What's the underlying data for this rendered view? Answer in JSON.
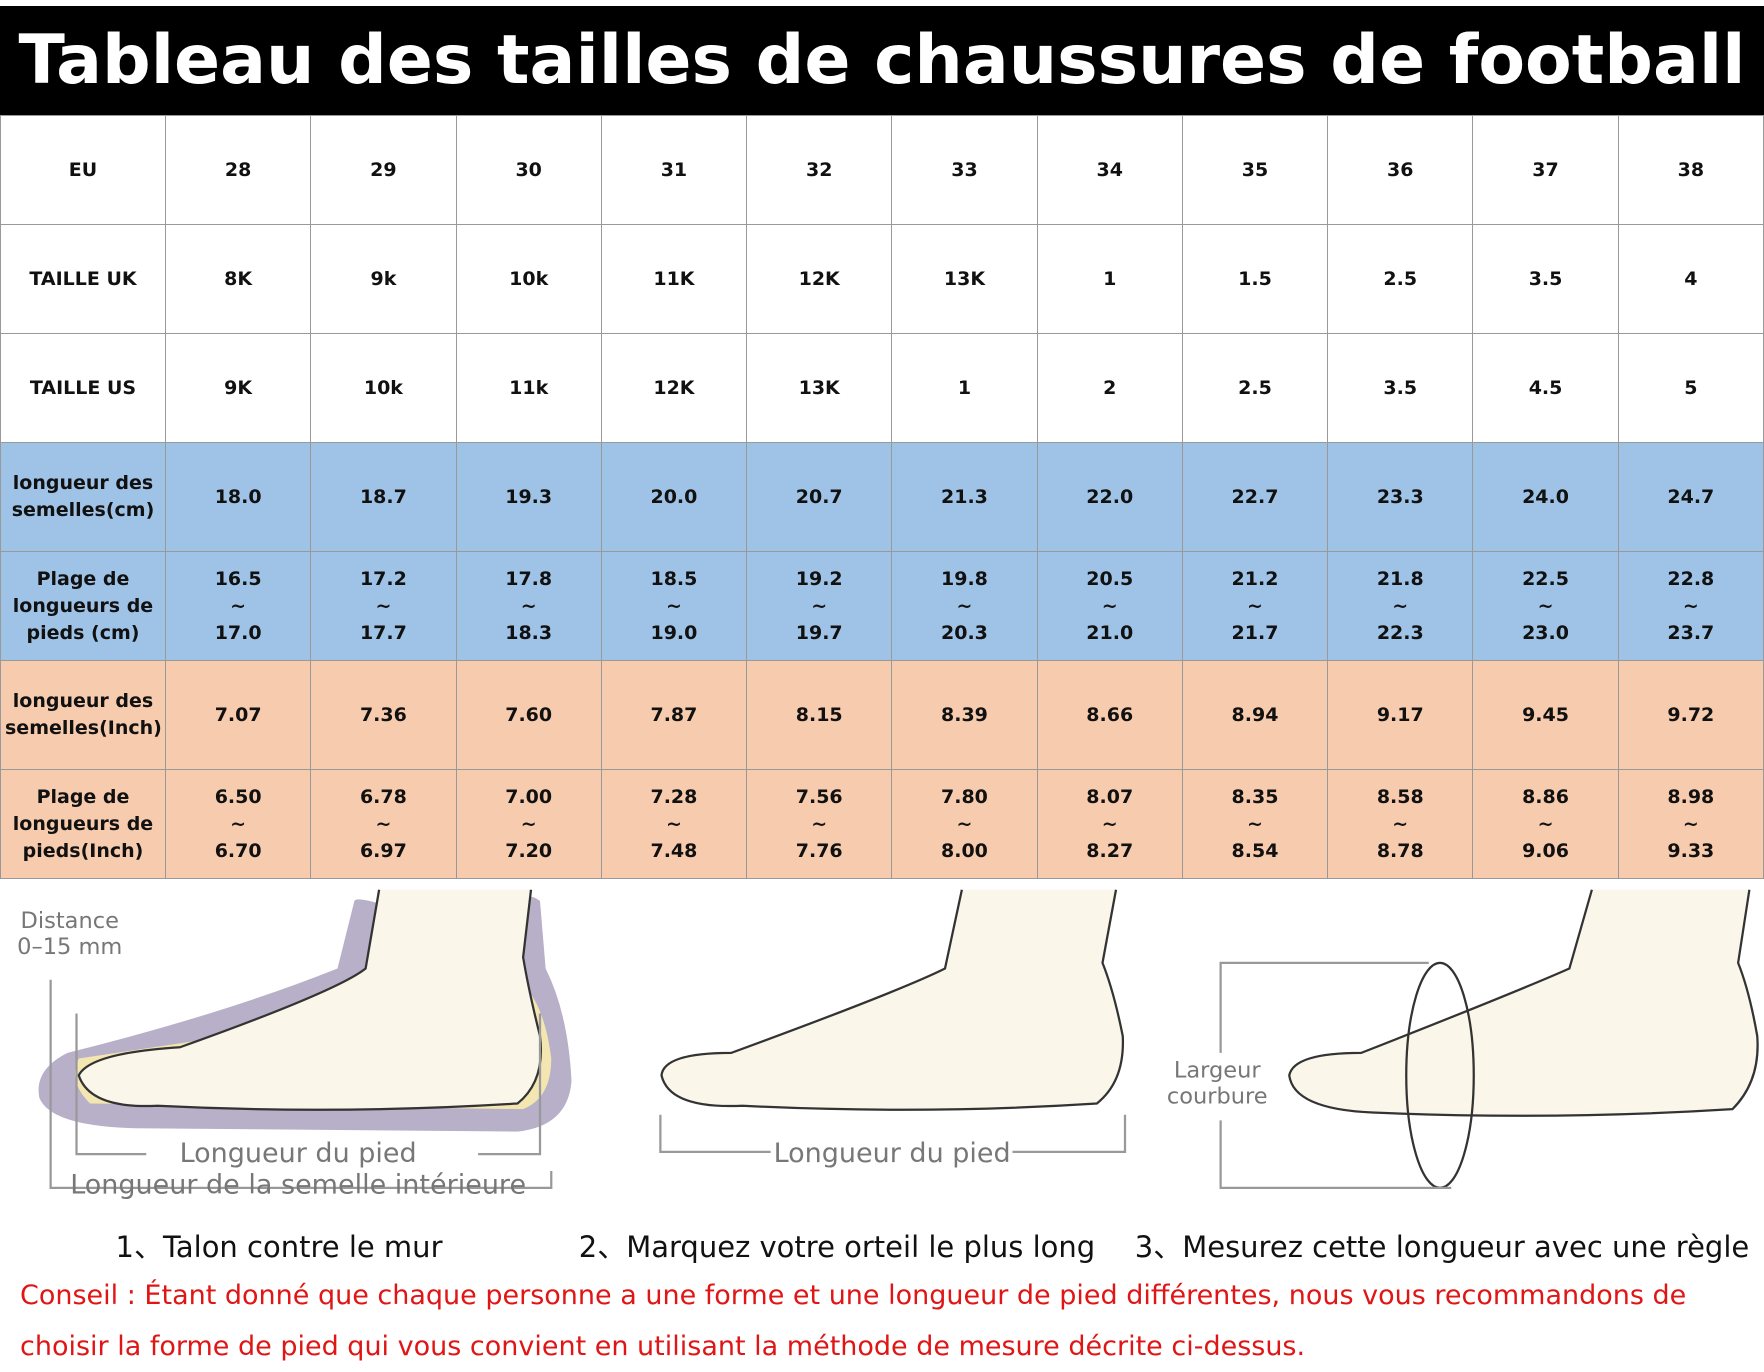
{
  "header": {
    "title": "Tableau des tailles de chaussures de football"
  },
  "table": {
    "rows": [
      {
        "label": "EU",
        "cells": [
          "28",
          "29",
          "30",
          "31",
          "32",
          "33",
          "34",
          "35",
          "36",
          "37",
          "38"
        ]
      },
      {
        "label": "TAILLE UK",
        "cells": [
          "8K",
          "9k",
          "10k",
          "11K",
          "12K",
          "13K",
          "1",
          "1.5",
          "2.5",
          "3.5",
          "4"
        ]
      },
      {
        "label": "TAILLE US",
        "cells": [
          "9K",
          "10k",
          "11k",
          "12K",
          "13K",
          "1",
          "2",
          "2.5",
          "3.5",
          "4.5",
          "5"
        ]
      },
      {
        "label": "longueur des semelles(cm)",
        "cells": [
          "18.0",
          "18.7",
          "19.3",
          "20.0",
          "20.7",
          "21.3",
          "22.0",
          "22.7",
          "23.3",
          "24.0",
          "24.7"
        ]
      },
      {
        "label": "Plage de longueurs de pieds (cm)",
        "cells": [
          "16.5\n~\n17.0",
          "17.2\n~\n17.7",
          "17.8\n~\n18.3",
          "18.5\n~\n19.0",
          "19.2\n~\n19.7",
          "19.8\n~\n20.3",
          "20.5\n~\n21.0",
          "21.2\n~\n21.7",
          "21.8\n~\n22.3",
          "22.5\n~\n23.0",
          "22.8\n~\n23.7"
        ]
      },
      {
        "label": "longueur des semelles(Inch)",
        "cells": [
          "7.07",
          "7.36",
          "7.60",
          "7.87",
          "8.15",
          "8.39",
          "8.66",
          "8.94",
          "9.17",
          "9.45",
          "9.72"
        ]
      },
      {
        "label": "Plage de longueurs de pieds(Inch)",
        "cells": [
          "6.50\n~\n6.70",
          "6.78\n~\n6.97",
          "7.00\n~\n7.20",
          "7.28\n~\n7.48",
          "7.56\n~\n7.76",
          "7.80\n~\n8.00",
          "8.07\n~\n8.27",
          "8.35\n~\n8.54",
          "8.58\n~\n8.78",
          "8.86\n~\n9.06",
          "8.98\n~\n9.33"
        ]
      }
    ]
  },
  "illustrations": {
    "distance": [
      "Distance",
      "0–15 mm"
    ],
    "foot_length_1": "Longueur du pied",
    "insole_length": "Longueur de la semelle intérieure",
    "foot_length_2": "Longueur du pied",
    "width": [
      "Largeur",
      "courbure"
    ]
  },
  "steps": [
    "1、Talon contre le mur",
    "2、Marquez votre orteil le plus long",
    "3、Mesurez cette longueur avec une règle"
  ],
  "advice": [
    "Conseil : Étant donné que chaque personne a une forme et une longueur de pied différentes, nous vous recommandons de",
    "choisir la forme de pied qui vous convient en utilisant la méthode de mesure décrite ci-dessus."
  ]
}
